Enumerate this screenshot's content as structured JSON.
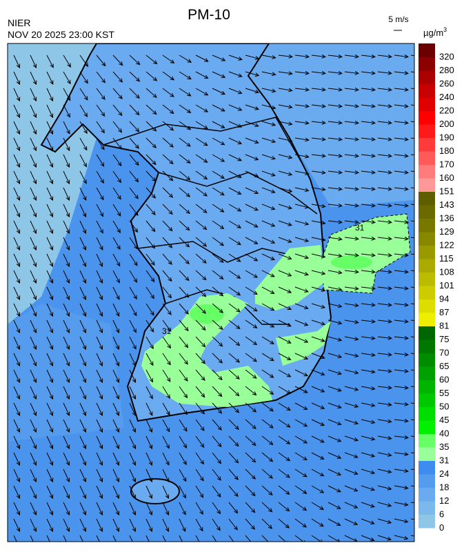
{
  "header": {
    "title": "PM-10",
    "agency": "NIER",
    "timestamp": "NOV 20 2025 23:00 KST",
    "wind_scale": "5 m/s"
  },
  "colorbar": {
    "unit": "µg/m",
    "unit_sup": "3",
    "levels": [
      0,
      6,
      12,
      18,
      24,
      31,
      35,
      40,
      45,
      50,
      55,
      60,
      65,
      70,
      75,
      81,
      87,
      94,
      101,
      108,
      115,
      122,
      129,
      136,
      143,
      151,
      160,
      170,
      180,
      190,
      200,
      220,
      240,
      260,
      280,
      320
    ],
    "colors": [
      "#8ec6e8",
      "#7bb8ec",
      "#6aaaee",
      "#559cee",
      "#3e8cf0",
      "#99ff99",
      "#66ff66",
      "#00f000",
      "#00dd00",
      "#00c800",
      "#00b400",
      "#00a000",
      "#008c00",
      "#007800",
      "#006600",
      "#eeee00",
      "#dddd00",
      "#cccc00",
      "#bbbb00",
      "#aaaa00",
      "#999900",
      "#888800",
      "#787800",
      "#6a6a00",
      "#5e5e00",
      "#ff9999",
      "#ff7a7a",
      "#ff5a5a",
      "#ff3a3a",
      "#ff1a1a",
      "#ff0000",
      "#e00000",
      "#c80000",
      "#aa0000",
      "#8c0000",
      "#6a0000"
    ]
  },
  "contour_labels": [
    "31",
    "31"
  ]
}
